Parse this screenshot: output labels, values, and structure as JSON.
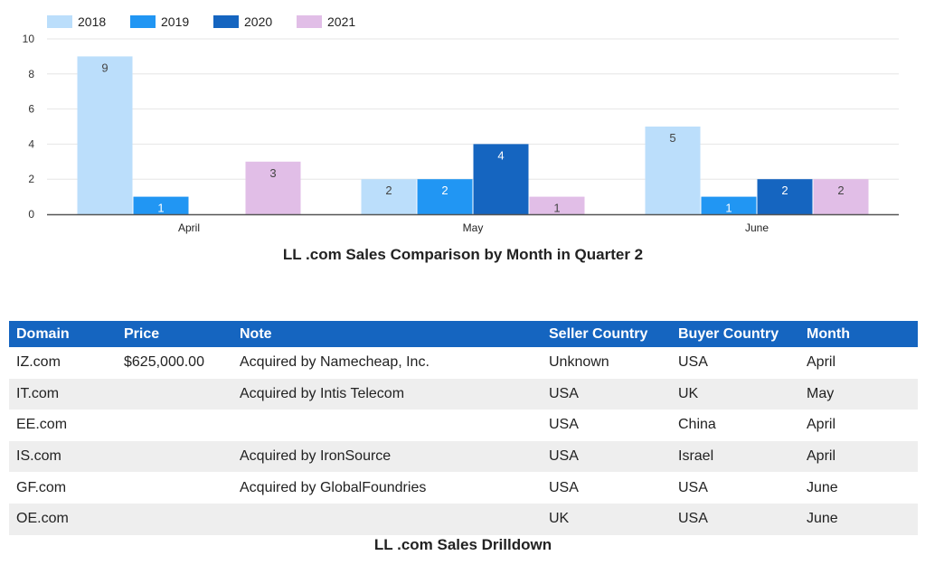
{
  "chart_data": {
    "type": "bar",
    "title": "LL .com Sales Comparison by Month in Quarter 2",
    "categories": [
      "April",
      "May",
      "June"
    ],
    "series": [
      {
        "name": "2018",
        "color": "#bbdefb",
        "values": [
          9,
          2,
          5
        ]
      },
      {
        "name": "2019",
        "color": "#2196f3",
        "values": [
          1,
          2,
          1
        ]
      },
      {
        "name": "2020",
        "color": "#1565c0",
        "values": [
          null,
          4,
          2
        ]
      },
      {
        "name": "2021",
        "color": "#e1bee7",
        "values": [
          3,
          1,
          2
        ]
      }
    ],
    "xlabel": "",
    "ylabel": "",
    "ylim": [
      0,
      10
    ],
    "yticks": [
      "0",
      "2",
      "4",
      "6",
      "8",
      "10"
    ],
    "grid": true,
    "legend_position": "top-left"
  },
  "table": {
    "title": "LL .com Sales Drilldown",
    "header_color": "#1565c0",
    "columns": [
      "Domain",
      "Price",
      "Note",
      "Seller Country",
      "Buyer Country",
      "Month"
    ],
    "rows": [
      [
        "IZ.com",
        "$625,000.00",
        "Acquired by Namecheap, Inc.",
        "Unknown",
        "USA",
        "April"
      ],
      [
        "IT.com",
        "",
        "Acquired by Intis Telecom",
        "USA",
        "UK",
        "May"
      ],
      [
        "EE.com",
        "",
        "",
        "USA",
        "China",
        "April"
      ],
      [
        "IS.com",
        "",
        "Acquired by IronSource",
        "USA",
        "Israel",
        "April"
      ],
      [
        "GF.com",
        "",
        "Acquired by GlobalFoundries",
        "USA",
        "USA",
        "June"
      ],
      [
        "OE.com",
        "",
        "",
        "UK",
        "USA",
        "June"
      ]
    ]
  }
}
